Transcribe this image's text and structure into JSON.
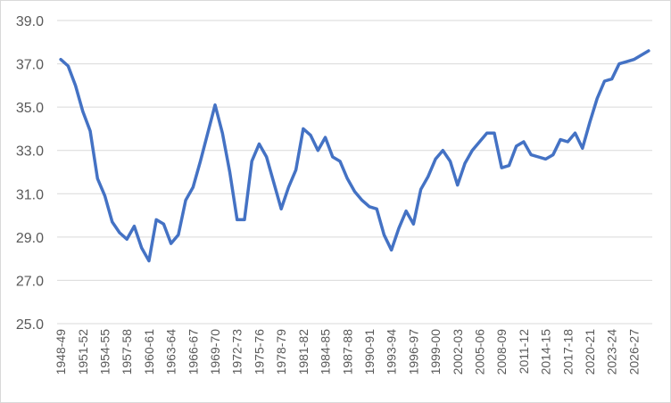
{
  "chart_data": {
    "type": "line",
    "title": "",
    "xlabel": "",
    "ylabel": "",
    "ylim": [
      25.0,
      39.0
    ],
    "y_ticks": [
      "25.0",
      "27.0",
      "29.0",
      "31.0",
      "33.0",
      "35.0",
      "37.0",
      "39.0"
    ],
    "grid": true,
    "legend": "none",
    "color": "#4472C4",
    "x": [
      "1948-49",
      "1949-50",
      "1950-51",
      "1951-52",
      "1952-53",
      "1953-54",
      "1954-55",
      "1955-56",
      "1956-57",
      "1957-58",
      "1958-59",
      "1959-60",
      "1960-61",
      "1961-62",
      "1962-63",
      "1963-64",
      "1964-65",
      "1965-66",
      "1966-67",
      "1967-68",
      "1968-69",
      "1969-70",
      "1970-71",
      "1971-72",
      "1972-73",
      "1973-74",
      "1974-75",
      "1975-76",
      "1976-77",
      "1977-78",
      "1978-79",
      "1979-80",
      "1980-81",
      "1981-82",
      "1982-83",
      "1983-84",
      "1984-85",
      "1985-86",
      "1986-87",
      "1987-88",
      "1988-89",
      "1989-90",
      "1990-91",
      "1991-92",
      "1992-93",
      "1993-94",
      "1994-95",
      "1995-96",
      "1996-97",
      "1997-98",
      "1998-99",
      "1999-00",
      "2000-01",
      "2001-02",
      "2002-03",
      "2003-04",
      "2004-05",
      "2005-06",
      "2006-07",
      "2007-08",
      "2008-09",
      "2009-10",
      "2010-11",
      "2011-12",
      "2012-13",
      "2013-14",
      "2014-15",
      "2015-16",
      "2016-17",
      "2017-18",
      "2018-19",
      "2019-20",
      "2020-21",
      "2021-22",
      "2022-23",
      "2023-24",
      "2024-25",
      "2025-26",
      "2026-27",
      "2027-28",
      "2028-29"
    ],
    "x_ticks": [
      "1948-49",
      "1951-52",
      "1954-55",
      "1957-58",
      "1960-61",
      "1963-64",
      "1966-67",
      "1969-70",
      "1972-73",
      "1975-76",
      "1978-79",
      "1981-82",
      "1984-85",
      "1987-88",
      "1990-91",
      "1993-94",
      "1996-97",
      "1999-00",
      "2002-03",
      "2005-06",
      "2008-09",
      "2011-12",
      "2014-15",
      "2017-18",
      "2020-21",
      "2023-24",
      "2026-27"
    ],
    "values": [
      37.2,
      36.9,
      36.0,
      34.8,
      33.9,
      31.7,
      30.9,
      29.7,
      29.2,
      28.9,
      29.5,
      28.5,
      27.9,
      29.8,
      29.6,
      28.7,
      29.1,
      30.7,
      31.3,
      32.5,
      33.8,
      35.1,
      33.8,
      32.0,
      29.8,
      29.8,
      32.5,
      33.3,
      32.7,
      31.5,
      30.3,
      31.3,
      32.1,
      34.0,
      33.7,
      33.0,
      33.6,
      32.7,
      32.5,
      31.7,
      31.1,
      30.7,
      30.4,
      30.3,
      29.1,
      28.4,
      29.4,
      30.2,
      29.6,
      31.2,
      31.8,
      32.6,
      33.0,
      32.5,
      31.4,
      32.4,
      33.0,
      33.4,
      33.8,
      33.8,
      32.2,
      32.3,
      33.2,
      33.4,
      32.8,
      32.7,
      32.6,
      32.8,
      33.5,
      33.4,
      33.8,
      33.1,
      34.3,
      35.4,
      36.2,
      36.3,
      37.0,
      37.1,
      37.2,
      37.4,
      37.6
    ]
  }
}
